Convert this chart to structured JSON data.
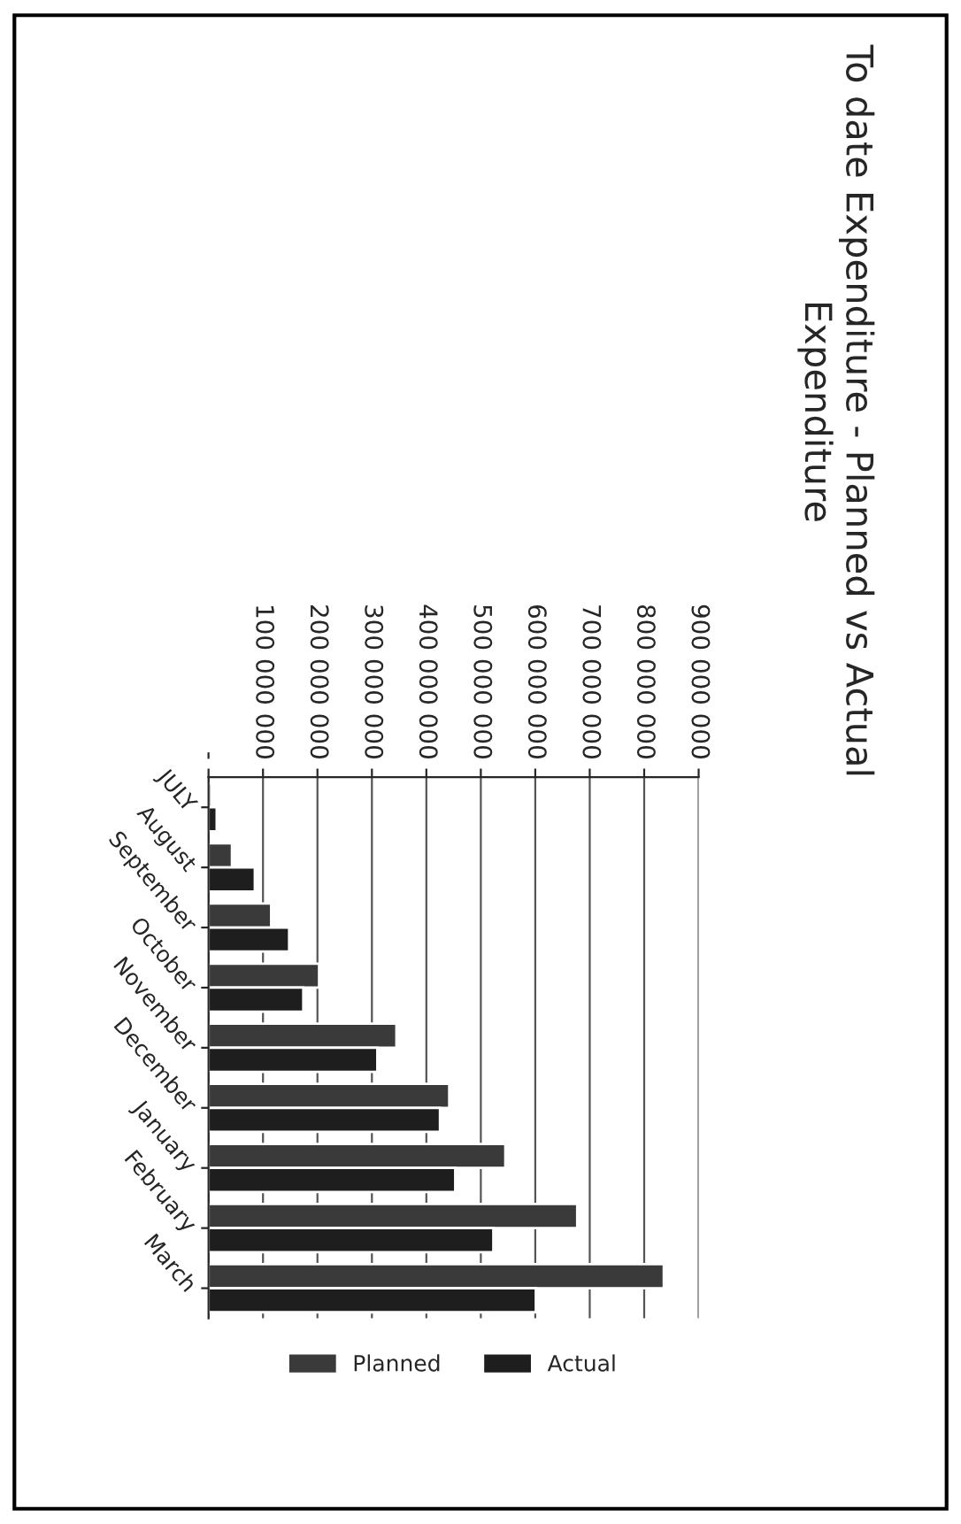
{
  "chart_data": {
    "type": "bar",
    "orientation": "horizontal",
    "title": "To date Expenditure - Planned vs Actual Expenditure",
    "categories": [
      "JULY",
      "August",
      "September",
      "October",
      "November",
      "December",
      "January",
      "February",
      "March"
    ],
    "series": [
      {
        "name": "Planned",
        "color": "#3a3a3a",
        "values": [
          5000000,
          43000000,
          115000000,
          203000000,
          345000000,
          442000000,
          545000000,
          677000000,
          836000000
        ]
      },
      {
        "name": "Actual",
        "color": "#1e1e1e",
        "values": [
          15000000,
          85000000,
          148000000,
          174000000,
          310000000,
          425000000,
          453000000,
          523000000,
          601000000
        ]
      }
    ],
    "xlim": [
      0,
      900000000
    ],
    "xticks": [
      {
        "value": 0,
        "label": "-"
      },
      {
        "value": 100000000,
        "label": "100 000 000"
      },
      {
        "value": 200000000,
        "label": "200 000 000"
      },
      {
        "value": 300000000,
        "label": "300 000 000"
      },
      {
        "value": 400000000,
        "label": "400 000 000"
      },
      {
        "value": 500000000,
        "label": "500 000 000"
      },
      {
        "value": 600000000,
        "label": "600 000 000"
      },
      {
        "value": 700000000,
        "label": "700 000 000"
      },
      {
        "value": 800000000,
        "label": "800 000 000"
      },
      {
        "value": 900000000,
        "label": "900 000 000"
      }
    ],
    "grid": "x",
    "legend": "bottom"
  }
}
